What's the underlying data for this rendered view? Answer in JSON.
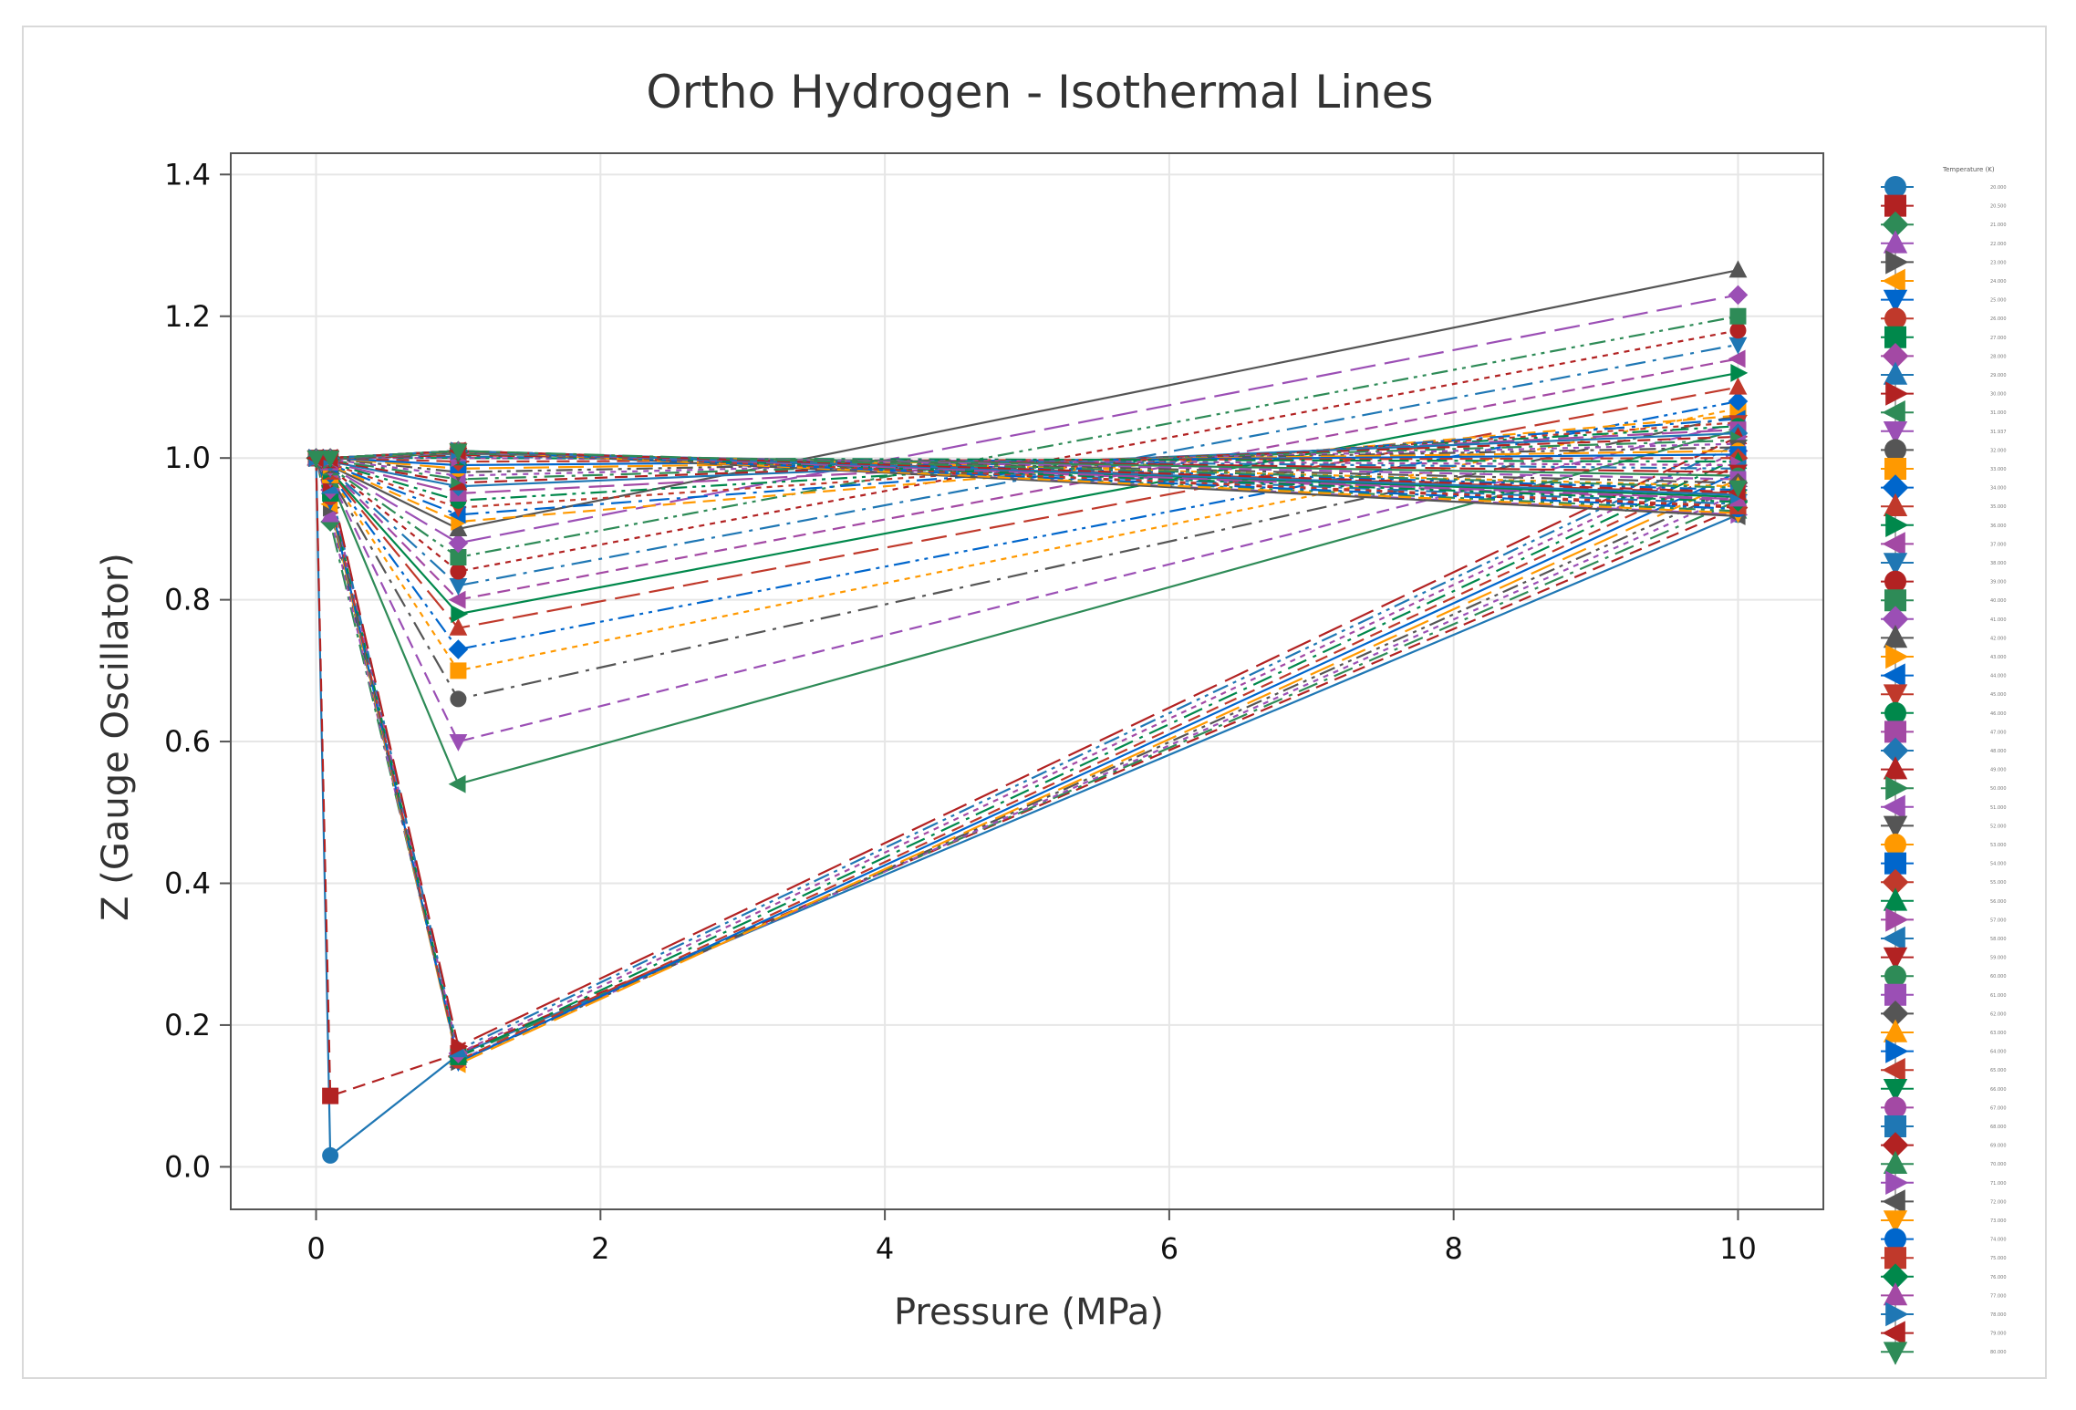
{
  "chart_data": {
    "type": "line",
    "title": "Ortho Hydrogen - Isothermal Lines",
    "xlabel": "Pressure (MPa)",
    "ylabel": "Z (Gauge Oscillator)",
    "xlim": [
      -0.6,
      10.6
    ],
    "ylim": [
      -0.06,
      1.43
    ],
    "xticks": [
      0,
      2,
      4,
      6,
      8,
      10
    ],
    "yticks": [
      0.0,
      0.2,
      0.4,
      0.6,
      0.8,
      1.0,
      1.2,
      1.4
    ],
    "xtick_labels": [
      "0",
      "2",
      "4",
      "6",
      "8",
      "10"
    ],
    "ytick_labels": [
      "0.0",
      "0.2",
      "0.4",
      "0.6",
      "0.8",
      "1.0",
      "1.2",
      "1.4"
    ],
    "grid": true,
    "legend": {
      "title": "Temperature (K)",
      "placement": "right",
      "entries": [
        "20.000",
        "20.500",
        "21.000",
        "22.000",
        "23.000",
        "24.000",
        "25.000",
        "26.000",
        "27.000",
        "28.000",
        "29.000",
        "30.000",
        "31.000",
        "31.937",
        "32.000",
        "33.000",
        "34.000",
        "35.000",
        "36.000",
        "37.000",
        "38.000",
        "39.000",
        "40.000",
        "41.000",
        "42.000",
        "43.000",
        "44.000",
        "45.000",
        "46.000",
        "47.000",
        "48.000",
        "49.000",
        "50.000",
        "51.000",
        "52.000",
        "53.000",
        "54.000",
        "55.000",
        "56.000",
        "57.000",
        "58.000",
        "59.000",
        "60.000",
        "61.000",
        "62.000",
        "63.000",
        "64.000",
        "65.000",
        "66.000",
        "67.000",
        "68.000",
        "69.000",
        "70.000",
        "71.000",
        "72.000",
        "73.000",
        "74.000",
        "75.000",
        "76.000",
        "77.000",
        "78.000",
        "79.000",
        "80.000"
      ]
    },
    "x": [
      0.0,
      0.1,
      1.0,
      10.0
    ],
    "series": [
      {
        "name": "20.000",
        "values": [
          1.0,
          0.016,
          0.158,
          0.92
        ]
      },
      {
        "name": "20.500",
        "values": [
          1.0,
          0.1,
          0.16,
          0.93
        ]
      },
      {
        "name": "21.000",
        "values": [
          1.0,
          0.91,
          0.155,
          0.94
        ]
      },
      {
        "name": "22.000",
        "values": [
          1.0,
          0.92,
          0.15,
          0.95
        ]
      },
      {
        "name": "23.000",
        "values": [
          1.0,
          0.93,
          0.148,
          0.96
        ]
      },
      {
        "name": "24.000",
        "values": [
          1.0,
          0.935,
          0.145,
          0.97
        ]
      },
      {
        "name": "25.000",
        "values": [
          1.0,
          0.94,
          0.148,
          0.98
        ]
      },
      {
        "name": "26.000",
        "values": [
          1.0,
          0.945,
          0.15,
          0.99
        ]
      },
      {
        "name": "27.000",
        "values": [
          1.0,
          0.95,
          0.155,
          1.0
        ]
      },
      {
        "name": "28.000",
        "values": [
          1.0,
          0.955,
          0.16,
          1.01
        ]
      },
      {
        "name": "29.000",
        "values": [
          1.0,
          0.96,
          0.165,
          1.02
        ]
      },
      {
        "name": "30.000",
        "values": [
          1.0,
          0.965,
          0.17,
          1.03
        ]
      },
      {
        "name": "31.000",
        "values": [
          1.0,
          0.97,
          0.54,
          1.04
        ]
      },
      {
        "name": "31.937",
        "values": [
          1.0,
          0.972,
          0.6,
          1.05
        ]
      },
      {
        "name": "32.000",
        "values": [
          1.0,
          0.974,
          0.66,
          1.06
        ]
      },
      {
        "name": "33.000",
        "values": [
          1.0,
          0.976,
          0.7,
          1.07
        ]
      },
      {
        "name": "34.000",
        "values": [
          1.0,
          0.978,
          0.73,
          1.08
        ]
      },
      {
        "name": "35.000",
        "values": [
          1.0,
          0.98,
          0.76,
          1.1
        ]
      },
      {
        "name": "36.000",
        "values": [
          1.0,
          0.982,
          0.78,
          1.12
        ]
      },
      {
        "name": "37.000",
        "values": [
          1.0,
          0.984,
          0.8,
          1.14
        ]
      },
      {
        "name": "38.000",
        "values": [
          1.0,
          0.985,
          0.82,
          1.16
        ]
      },
      {
        "name": "39.000",
        "values": [
          1.0,
          0.986,
          0.84,
          1.18
        ]
      },
      {
        "name": "40.000",
        "values": [
          1.0,
          0.987,
          0.86,
          1.2
        ]
      },
      {
        "name": "41.000",
        "values": [
          1.0,
          0.988,
          0.88,
          1.23
        ]
      },
      {
        "name": "42.000",
        "values": [
          1.0,
          0.989,
          0.9,
          1.265
        ]
      },
      {
        "name": "43.000",
        "values": [
          1.0,
          0.99,
          0.91,
          1.06
        ]
      },
      {
        "name": "44.000",
        "values": [
          1.0,
          0.991,
          0.92,
          1.055
        ]
      },
      {
        "name": "45.000",
        "values": [
          1.0,
          0.992,
          0.93,
          1.05
        ]
      },
      {
        "name": "46.000",
        "values": [
          1.0,
          0.993,
          0.94,
          1.045
        ]
      },
      {
        "name": "47.000",
        "values": [
          1.0,
          0.994,
          0.95,
          1.04
        ]
      },
      {
        "name": "48.000",
        "values": [
          1.0,
          0.995,
          0.96,
          1.035
        ]
      },
      {
        "name": "49.000",
        "values": [
          1.0,
          0.996,
          0.965,
          1.03
        ]
      },
      {
        "name": "50.000",
        "values": [
          1.0,
          0.997,
          0.97,
          1.025
        ]
      },
      {
        "name": "51.000",
        "values": [
          1.0,
          0.998,
          0.975,
          1.02
        ]
      },
      {
        "name": "52.000",
        "values": [
          1.0,
          0.999,
          0.98,
          1.015
        ]
      },
      {
        "name": "53.000",
        "values": [
          1.0,
          1.0,
          0.985,
          1.01
        ]
      },
      {
        "name": "54.000",
        "values": [
          1.0,
          1.0,
          0.99,
          1.005
        ]
      },
      {
        "name": "55.000",
        "values": [
          1.0,
          1.0,
          0.995,
          1.0
        ]
      },
      {
        "name": "56.000",
        "values": [
          1.0,
          1.0,
          1.0,
          0.995
        ]
      },
      {
        "name": "57.000",
        "values": [
          1.0,
          1.0,
          1.0,
          0.99
        ]
      },
      {
        "name": "58.000",
        "values": [
          1.0,
          1.0,
          1.002,
          0.985
        ]
      },
      {
        "name": "59.000",
        "values": [
          1.0,
          1.0,
          1.004,
          0.98
        ]
      },
      {
        "name": "60.000",
        "values": [
          1.0,
          1.0,
          1.006,
          0.975
        ]
      },
      {
        "name": "61.000",
        "values": [
          1.0,
          1.0,
          1.007,
          0.97
        ]
      },
      {
        "name": "62.000",
        "values": [
          1.0,
          1.0,
          1.008,
          0.965
        ]
      },
      {
        "name": "63.000",
        "values": [
          1.0,
          1.0,
          1.009,
          0.96
        ]
      },
      {
        "name": "64.000",
        "values": [
          1.0,
          1.0,
          1.01,
          0.955
        ]
      },
      {
        "name": "65.000",
        "values": [
          1.0,
          1.0,
          1.01,
          0.95
        ]
      },
      {
        "name": "66.000",
        "values": [
          1.0,
          1.0,
          1.01,
          0.945
        ]
      },
      {
        "name": "67.000",
        "values": [
          1.0,
          1.0,
          1.01,
          0.94
        ]
      },
      {
        "name": "68.000",
        "values": [
          1.0,
          1.0,
          1.01,
          0.935
        ]
      },
      {
        "name": "69.000",
        "values": [
          1.0,
          1.0,
          1.01,
          0.93
        ]
      },
      {
        "name": "70.000",
        "values": [
          1.0,
          1.0,
          1.01,
          0.925
        ]
      },
      {
        "name": "71.000",
        "values": [
          1.0,
          1.0,
          1.01,
          0.92
        ]
      },
      {
        "name": "72.000",
        "values": [
          1.0,
          1.0,
          1.01,
          0.918
        ]
      },
      {
        "name": "73.000",
        "values": [
          1.0,
          1.0,
          1.01,
          0.922
        ]
      },
      {
        "name": "74.000",
        "values": [
          1.0,
          1.0,
          1.01,
          0.928
        ]
      },
      {
        "name": "75.000",
        "values": [
          1.0,
          1.0,
          1.01,
          0.932
        ]
      },
      {
        "name": "76.000",
        "values": [
          1.0,
          1.0,
          1.01,
          0.938
        ]
      },
      {
        "name": "77.000",
        "values": [
          1.0,
          1.0,
          1.01,
          0.942
        ]
      },
      {
        "name": "78.000",
        "values": [
          1.0,
          1.0,
          1.01,
          0.948
        ]
      },
      {
        "name": "79.000",
        "values": [
          1.0,
          1.0,
          1.01,
          0.952
        ]
      },
      {
        "name": "80.000",
        "values": [
          1.0,
          1.0,
          1.01,
          0.958
        ]
      }
    ]
  },
  "colors": [
    "#1f77b4",
    "#b22222",
    "#2e8b57",
    "#9b4fb5",
    "#555555",
    "#ff9900",
    "#0066cc",
    "#c0392b",
    "#00884b",
    "#a349a4"
  ],
  "markers": [
    "circle",
    "square",
    "diamond",
    "triangle-up",
    "triangle-right",
    "triangle-left",
    "triangle-down"
  ]
}
